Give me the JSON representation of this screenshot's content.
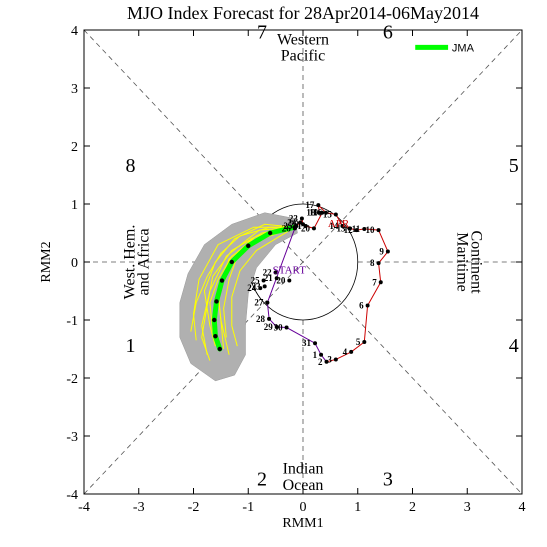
{
  "chart_data": {
    "type": "line",
    "title": "MJO Index Forecast for 28Apr2014-06May2014",
    "xlabel": "RMM1",
    "ylabel": "RMM2",
    "xlim": [
      -4,
      4
    ],
    "ylim": [
      -4,
      4
    ],
    "x_ticks": [
      "-4",
      "-3",
      "-2",
      "-1",
      "0",
      "1",
      "2",
      "3",
      "4"
    ],
    "y_ticks": [
      "-4",
      "-3",
      "-2",
      "-1",
      "0",
      "1",
      "2",
      "3",
      "4"
    ],
    "phase_numbers": [
      {
        "label": "1",
        "x": -3.15,
        "y": -1.55
      },
      {
        "label": "2",
        "x": -0.75,
        "y": -3.85
      },
      {
        "label": "3",
        "x": 1.55,
        "y": -3.85
      },
      {
        "label": "4",
        "x": 3.85,
        "y": -1.55
      },
      {
        "label": "5",
        "x": 3.85,
        "y": 1.55
      },
      {
        "label": "6",
        "x": 1.55,
        "y": 3.85
      },
      {
        "label": "7",
        "x": -0.75,
        "y": 3.85
      },
      {
        "label": "8",
        "x": -3.15,
        "y": 1.55
      }
    ],
    "regions": {
      "top": [
        "Western",
        "Pacific"
      ],
      "bottom": [
        "Indian",
        "Ocean"
      ],
      "left": [
        "West. Hem.",
        "and Africa"
      ],
      "right": [
        "Maritime",
        "Continent"
      ]
    },
    "legend": [
      {
        "name": "JMA",
        "color": "#00ff00"
      }
    ],
    "start_label": "START",
    "month_label": "APR",
    "observed_series": [
      {
        "label": "2",
        "x": 0.43,
        "y": -1.72
      },
      {
        "label": "3",
        "x": 0.6,
        "y": -1.68
      },
      {
        "label": "4",
        "x": 0.88,
        "y": -1.55
      },
      {
        "label": "5",
        "x": 1.12,
        "y": -1.38
      },
      {
        "label": "6",
        "x": 1.18,
        "y": -0.75
      },
      {
        "label": "7",
        "x": 1.42,
        "y": -0.35
      },
      {
        "label": "8",
        "x": 1.38,
        "y": -0.02
      },
      {
        "label": "9",
        "x": 1.55,
        "y": 0.18
      },
      {
        "label": "10",
        "x": 1.38,
        "y": 0.55
      },
      {
        "label": "11",
        "x": 1.12,
        "y": 0.57
      },
      {
        "label": "12",
        "x": 0.98,
        "y": 0.55
      },
      {
        "label": "13",
        "x": 0.85,
        "y": 0.58
      },
      {
        "label": "14",
        "x": 0.72,
        "y": 0.62
      },
      {
        "label": "15",
        "x": 0.6,
        "y": 0.82
      },
      {
        "label": "16",
        "x": 0.42,
        "y": 0.85
      },
      {
        "label": "17",
        "x": 0.28,
        "y": 0.98
      },
      {
        "label": "18",
        "x": 0.3,
        "y": 0.85
      },
      {
        "label": "19",
        "x": 0.35,
        "y": 0.85
      },
      {
        "label": "20",
        "x": 0.2,
        "y": 0.58
      },
      {
        "label": "21",
        "x": 0.05,
        "y": 0.62
      },
      {
        "label": "22",
        "x": 0.0,
        "y": 0.65
      },
      {
        "label": "23",
        "x": -0.02,
        "y": 0.75
      },
      {
        "label": "24",
        "x": -0.05,
        "y": 0.68
      },
      {
        "label": "25",
        "x": -0.12,
        "y": 0.62
      },
      {
        "label": "26",
        "x": -0.15,
        "y": 0.58
      },
      {
        "label": "27",
        "x": -0.65,
        "y": -0.7
      },
      {
        "label": "28",
        "x": -0.62,
        "y": -0.98
      },
      {
        "label": "29",
        "x": -0.48,
        "y": -1.12
      },
      {
        "label": "30",
        "x": -0.3,
        "y": -1.13
      },
      {
        "label": "31",
        "x": 0.22,
        "y": -1.4
      },
      {
        "label": "1",
        "x": 0.33,
        "y": -1.6
      },
      {
        "label": "20",
        "x": -0.25,
        "y": -0.32
      },
      {
        "label": "21",
        "x": -0.48,
        "y": -0.28
      },
      {
        "label": "22",
        "x": -0.5,
        "y": -0.18
      },
      {
        "label": "23",
        "x": -0.7,
        "y": -0.42
      },
      {
        "label": "24",
        "x": -0.78,
        "y": -0.45
      },
      {
        "label": "25",
        "x": -0.72,
        "y": -0.32
      }
    ],
    "forecast_mean": {
      "name": "JMA",
      "color": "#00ff00",
      "points": [
        {
          "x": -0.15,
          "y": 0.6
        },
        {
          "x": -0.6,
          "y": 0.5
        },
        {
          "x": -1.0,
          "y": 0.28
        },
        {
          "x": -1.3,
          "y": 0.0
        },
        {
          "x": -1.48,
          "y": -0.32
        },
        {
          "x": -1.58,
          "y": -0.68
        },
        {
          "x": -1.62,
          "y": -1.0
        },
        {
          "x": -1.6,
          "y": -1.28
        },
        {
          "x": -1.52,
          "y": -1.5
        }
      ]
    },
    "ensemble_members": [
      [
        {
          "x": -0.15,
          "y": 0.6
        },
        {
          "x": -0.8,
          "y": 0.55
        },
        {
          "x": -1.4,
          "y": 0.1
        },
        {
          "x": -1.7,
          "y": -0.5
        },
        {
          "x": -1.85,
          "y": -1.1
        },
        {
          "x": -1.75,
          "y": -1.6
        }
      ],
      [
        {
          "x": -0.15,
          "y": 0.6
        },
        {
          "x": -0.55,
          "y": 0.55
        },
        {
          "x": -0.95,
          "y": 0.4
        },
        {
          "x": -1.2,
          "y": 0.1
        },
        {
          "x": -1.35,
          "y": -0.3
        },
        {
          "x": -1.45,
          "y": -0.8
        },
        {
          "x": -1.4,
          "y": -1.3
        }
      ],
      [
        {
          "x": -0.15,
          "y": 0.6
        },
        {
          "x": -0.7,
          "y": 0.65
        },
        {
          "x": -1.25,
          "y": 0.4
        },
        {
          "x": -1.6,
          "y": 0.0
        },
        {
          "x": -1.8,
          "y": -0.5
        },
        {
          "x": -1.7,
          "y": -1.1
        },
        {
          "x": -1.6,
          "y": -1.45
        }
      ],
      [
        {
          "x": -0.15,
          "y": 0.6
        },
        {
          "x": -0.5,
          "y": 0.4
        },
        {
          "x": -0.85,
          "y": 0.2
        },
        {
          "x": -1.15,
          "y": -0.15
        },
        {
          "x": -1.3,
          "y": -0.6
        },
        {
          "x": -1.3,
          "y": -1.1
        },
        {
          "x": -1.2,
          "y": -1.45
        }
      ],
      [
        {
          "x": -0.15,
          "y": 0.6
        },
        {
          "x": -0.9,
          "y": 0.6
        },
        {
          "x": -1.55,
          "y": 0.3
        },
        {
          "x": -1.9,
          "y": -0.3
        },
        {
          "x": -2.0,
          "y": -0.9
        },
        {
          "x": -1.95,
          "y": -1.35
        }
      ],
      [
        {
          "x": -0.15,
          "y": 0.6
        },
        {
          "x": -0.65,
          "y": 0.45
        },
        {
          "x": -1.1,
          "y": 0.2
        },
        {
          "x": -1.45,
          "y": -0.2
        },
        {
          "x": -1.55,
          "y": -0.6
        },
        {
          "x": -1.5,
          "y": -1.0
        },
        {
          "x": -1.35,
          "y": -1.6
        }
      ],
      [
        {
          "x": -0.15,
          "y": 0.6
        },
        {
          "x": -0.75,
          "y": 0.5
        },
        {
          "x": -1.3,
          "y": 0.2
        },
        {
          "x": -1.65,
          "y": -0.25
        },
        {
          "x": -1.75,
          "y": -0.75
        },
        {
          "x": -1.85,
          "y": -1.3
        },
        {
          "x": -1.7,
          "y": -1.7
        }
      ],
      [
        {
          "x": -0.15,
          "y": 0.6
        },
        {
          "x": -0.45,
          "y": 0.5
        },
        {
          "x": -0.9,
          "y": 0.35
        },
        {
          "x": -1.3,
          "y": 0.1
        },
        {
          "x": -1.55,
          "y": -0.3
        },
        {
          "x": -1.7,
          "y": -0.7
        },
        {
          "x": -1.65,
          "y": -1.2
        }
      ],
      [
        {
          "x": -0.15,
          "y": 0.6
        },
        {
          "x": -0.85,
          "y": 0.45
        },
        {
          "x": -1.35,
          "y": 0.05
        },
        {
          "x": -1.55,
          "y": -0.5
        },
        {
          "x": -1.5,
          "y": -1.0
        },
        {
          "x": -1.45,
          "y": -1.5
        }
      ],
      [
        {
          "x": -0.15,
          "y": 0.6
        },
        {
          "x": -0.6,
          "y": 0.6
        },
        {
          "x": -1.15,
          "y": 0.45
        },
        {
          "x": -1.5,
          "y": 0.15
        },
        {
          "x": -1.75,
          "y": -0.25
        },
        {
          "x": -1.95,
          "y": -0.7
        },
        {
          "x": -2.05,
          "y": -1.2
        }
      ]
    ],
    "spread_polygon": [
      {
        "x": -0.15,
        "y": 0.75
      },
      {
        "x": -0.7,
        "y": 0.85
      },
      {
        "x": -1.3,
        "y": 0.65
      },
      {
        "x": -1.8,
        "y": 0.3
      },
      {
        "x": -2.1,
        "y": -0.2
      },
      {
        "x": -2.25,
        "y": -0.7
      },
      {
        "x": -2.25,
        "y": -1.3
      },
      {
        "x": -2.05,
        "y": -1.75
      },
      {
        "x": -1.6,
        "y": -2.05
      },
      {
        "x": -1.25,
        "y": -1.95
      },
      {
        "x": -1.05,
        "y": -1.6
      },
      {
        "x": -1.05,
        "y": -1.1
      },
      {
        "x": -1.0,
        "y": -0.55
      },
      {
        "x": -0.85,
        "y": -0.1
      },
      {
        "x": -0.5,
        "y": 0.3
      },
      {
        "x": -0.1,
        "y": 0.5
      }
    ]
  }
}
